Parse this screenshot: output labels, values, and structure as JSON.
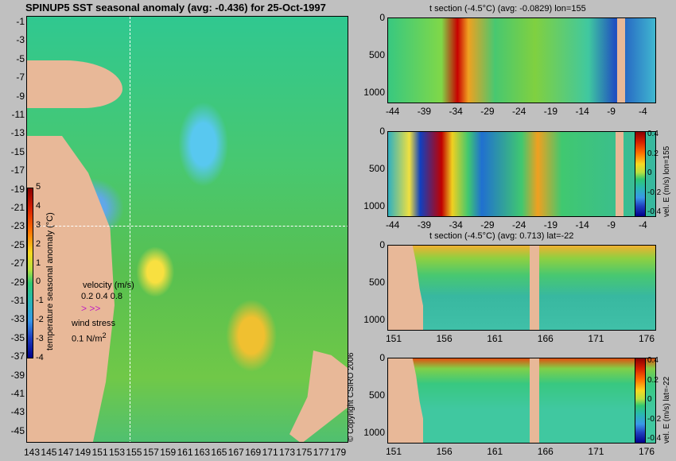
{
  "map": {
    "title": "SPINUP5 SST seasonal anomaly (avg: -0.436) for 25-Oct-1997",
    "y_ticks": [
      "-1",
      "-3",
      "-5",
      "-7",
      "-9",
      "-11",
      "-13",
      "-15",
      "-17",
      "-19",
      "-21",
      "-23",
      "-25",
      "-27",
      "-29",
      "-31",
      "-33",
      "-35",
      "-37",
      "-39",
      "-41",
      "-43",
      "-45"
    ],
    "x_ticks": [
      "143",
      "145",
      "147",
      "149",
      "151",
      "153",
      "155",
      "157",
      "159",
      "161",
      "163",
      "165",
      "167",
      "169",
      "171",
      "173",
      "175",
      "177",
      "179"
    ],
    "colorbar_ticks": [
      "5",
      "4",
      "3",
      "2",
      "1",
      "0",
      "-1",
      "-2",
      "-3",
      "-4"
    ],
    "colorbar_label": "temperature seasonal anomaly (°C)",
    "velocity_label": "velocity (m/s)",
    "velocity_scale": "0.2 0.4 0.8",
    "wind_label": "wind stress",
    "wind_scale": "0.1 N/m",
    "wind_scale_sup": "2"
  },
  "copyright": "© Copyright CSIRO 2006",
  "panels": [
    {
      "title": "t section (-4.5°C) (avg: -0.0829) lon=155",
      "x_ticks": [
        "-44",
        "-39",
        "-34",
        "-29",
        "-24",
        "-19",
        "-14",
        "-9",
        "-4"
      ],
      "y_ticks": [
        "0",
        "500",
        "1000"
      ]
    },
    {
      "title": "",
      "x_ticks": [
        "-44",
        "-39",
        "-34",
        "-29",
        "-24",
        "-19",
        "-14",
        "-9",
        "-4"
      ],
      "y_ticks": [
        "0",
        "500",
        "1000"
      ],
      "cbar_ticks": [
        "0.4",
        "0.2",
        "0",
        "-0.2",
        "-0.4"
      ],
      "cbar_label": "vel. E (m/s) lon=155"
    },
    {
      "title": "t section (-4.5°C) (avg: 0.713) lat=-22",
      "x_ticks": [
        "151",
        "156",
        "161",
        "166",
        "171",
        "176"
      ],
      "y_ticks": [
        "0",
        "500",
        "1000"
      ]
    },
    {
      "title": "",
      "x_ticks": [
        "151",
        "156",
        "161",
        "166",
        "171",
        "176"
      ],
      "y_ticks": [
        "0",
        "500",
        "1000"
      ],
      "cbar_ticks": [
        "0.4",
        "0.2",
        "0",
        "-0.2",
        "-0.4"
      ],
      "cbar_label": "vel. E (m/s) lat=-22"
    }
  ],
  "chart_data": [
    {
      "type": "heatmap",
      "title": "SPINUP5 SST seasonal anomaly (avg: -0.436) for 25-Oct-1997",
      "x_range": [
        143,
        180
      ],
      "y_range": [
        -45,
        0
      ],
      "colorbar_range": [
        -4,
        5
      ],
      "colorbar_label": "temperature seasonal anomaly (°C)",
      "crosshair": {
        "x": 155,
        "y": -22
      }
    },
    {
      "type": "heatmap",
      "title": "t section (-4.5°C) (avg: -0.0829) lon=155",
      "x_range": [
        -45,
        -1
      ],
      "y_range": [
        1050,
        0
      ]
    },
    {
      "type": "heatmap",
      "x_range": [
        -45,
        -1
      ],
      "y_range": [
        1050,
        0
      ],
      "colorbar_range": [
        -0.4,
        0.4
      ],
      "colorbar_label": "vel. E (m/s) lon=155"
    },
    {
      "type": "heatmap",
      "title": "t section (-4.5°C) (avg: 0.713) lat=-22",
      "x_range": [
        150,
        180
      ],
      "y_range": [
        1050,
        0
      ]
    },
    {
      "type": "heatmap",
      "x_range": [
        150,
        180
      ],
      "y_range": [
        1050,
        0
      ],
      "colorbar_range": [
        -0.4,
        0.4
      ],
      "colorbar_label": "vel. E (m/s) lat=-22"
    }
  ]
}
